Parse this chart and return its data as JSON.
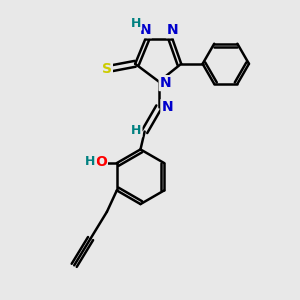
{
  "bg_color": "#e8e8e8",
  "atom_colors": {
    "N": "#0000cc",
    "S": "#cccc00",
    "O": "#ff0000",
    "C": "#000000",
    "H": "#008080"
  },
  "bond_color": "#000000",
  "bond_lw": 1.8,
  "figsize": [
    3.0,
    3.0
  ],
  "dpi": 100
}
